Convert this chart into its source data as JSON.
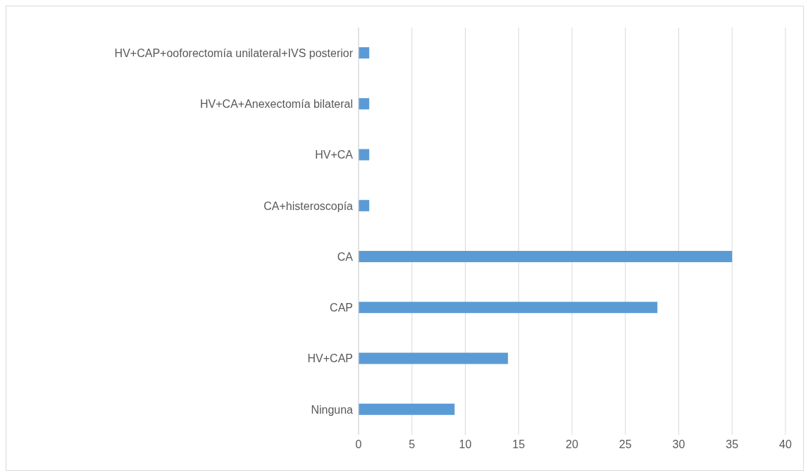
{
  "chart_data": {
    "type": "bar",
    "orientation": "horizontal",
    "categories": [
      "HV+CAP+ooforectomía unilateral+IVS posterior",
      "HV+CA+Anexectomía bilateral",
      "HV+CA",
      "CA+histeroscopía",
      "CA",
      "CAP",
      "HV+CAP",
      "Ninguna"
    ],
    "values": [
      1,
      1,
      1,
      1,
      35,
      28,
      14,
      9
    ],
    "color": "#5b9bd5",
    "xlim": [
      0,
      40
    ],
    "xticks": [
      0,
      5,
      10,
      15,
      20,
      25,
      30,
      35,
      40
    ],
    "grid": "x"
  }
}
